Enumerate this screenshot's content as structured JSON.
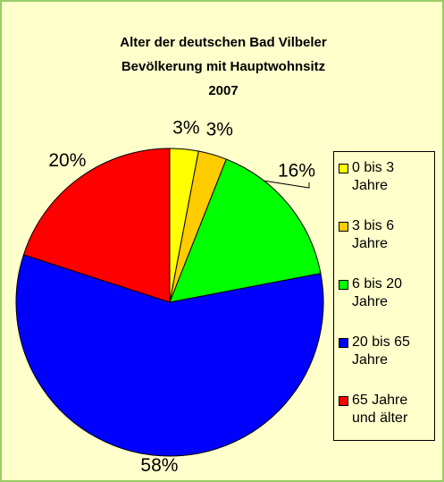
{
  "chart_data": {
    "type": "pie",
    "title": [
      "Alter der deutschen Bad Vilbeler",
      "Bevölkerung mit Hauptwohnsitz",
      "2007"
    ],
    "categories": [
      "0 bis 3 Jahre",
      "3 bis 6 Jahre",
      "6 bis 20 Jahre",
      "20 bis 65 Jahre",
      "65 Jahre und älter"
    ],
    "values": [
      3,
      3,
      16,
      58,
      20
    ],
    "value_labels": [
      "3%",
      "3%",
      "16%",
      "58%",
      "20%"
    ],
    "colors": [
      "#ffff00",
      "#ffcc00",
      "#00ff00",
      "#0000ff",
      "#ff0000"
    ],
    "legend": "right"
  }
}
